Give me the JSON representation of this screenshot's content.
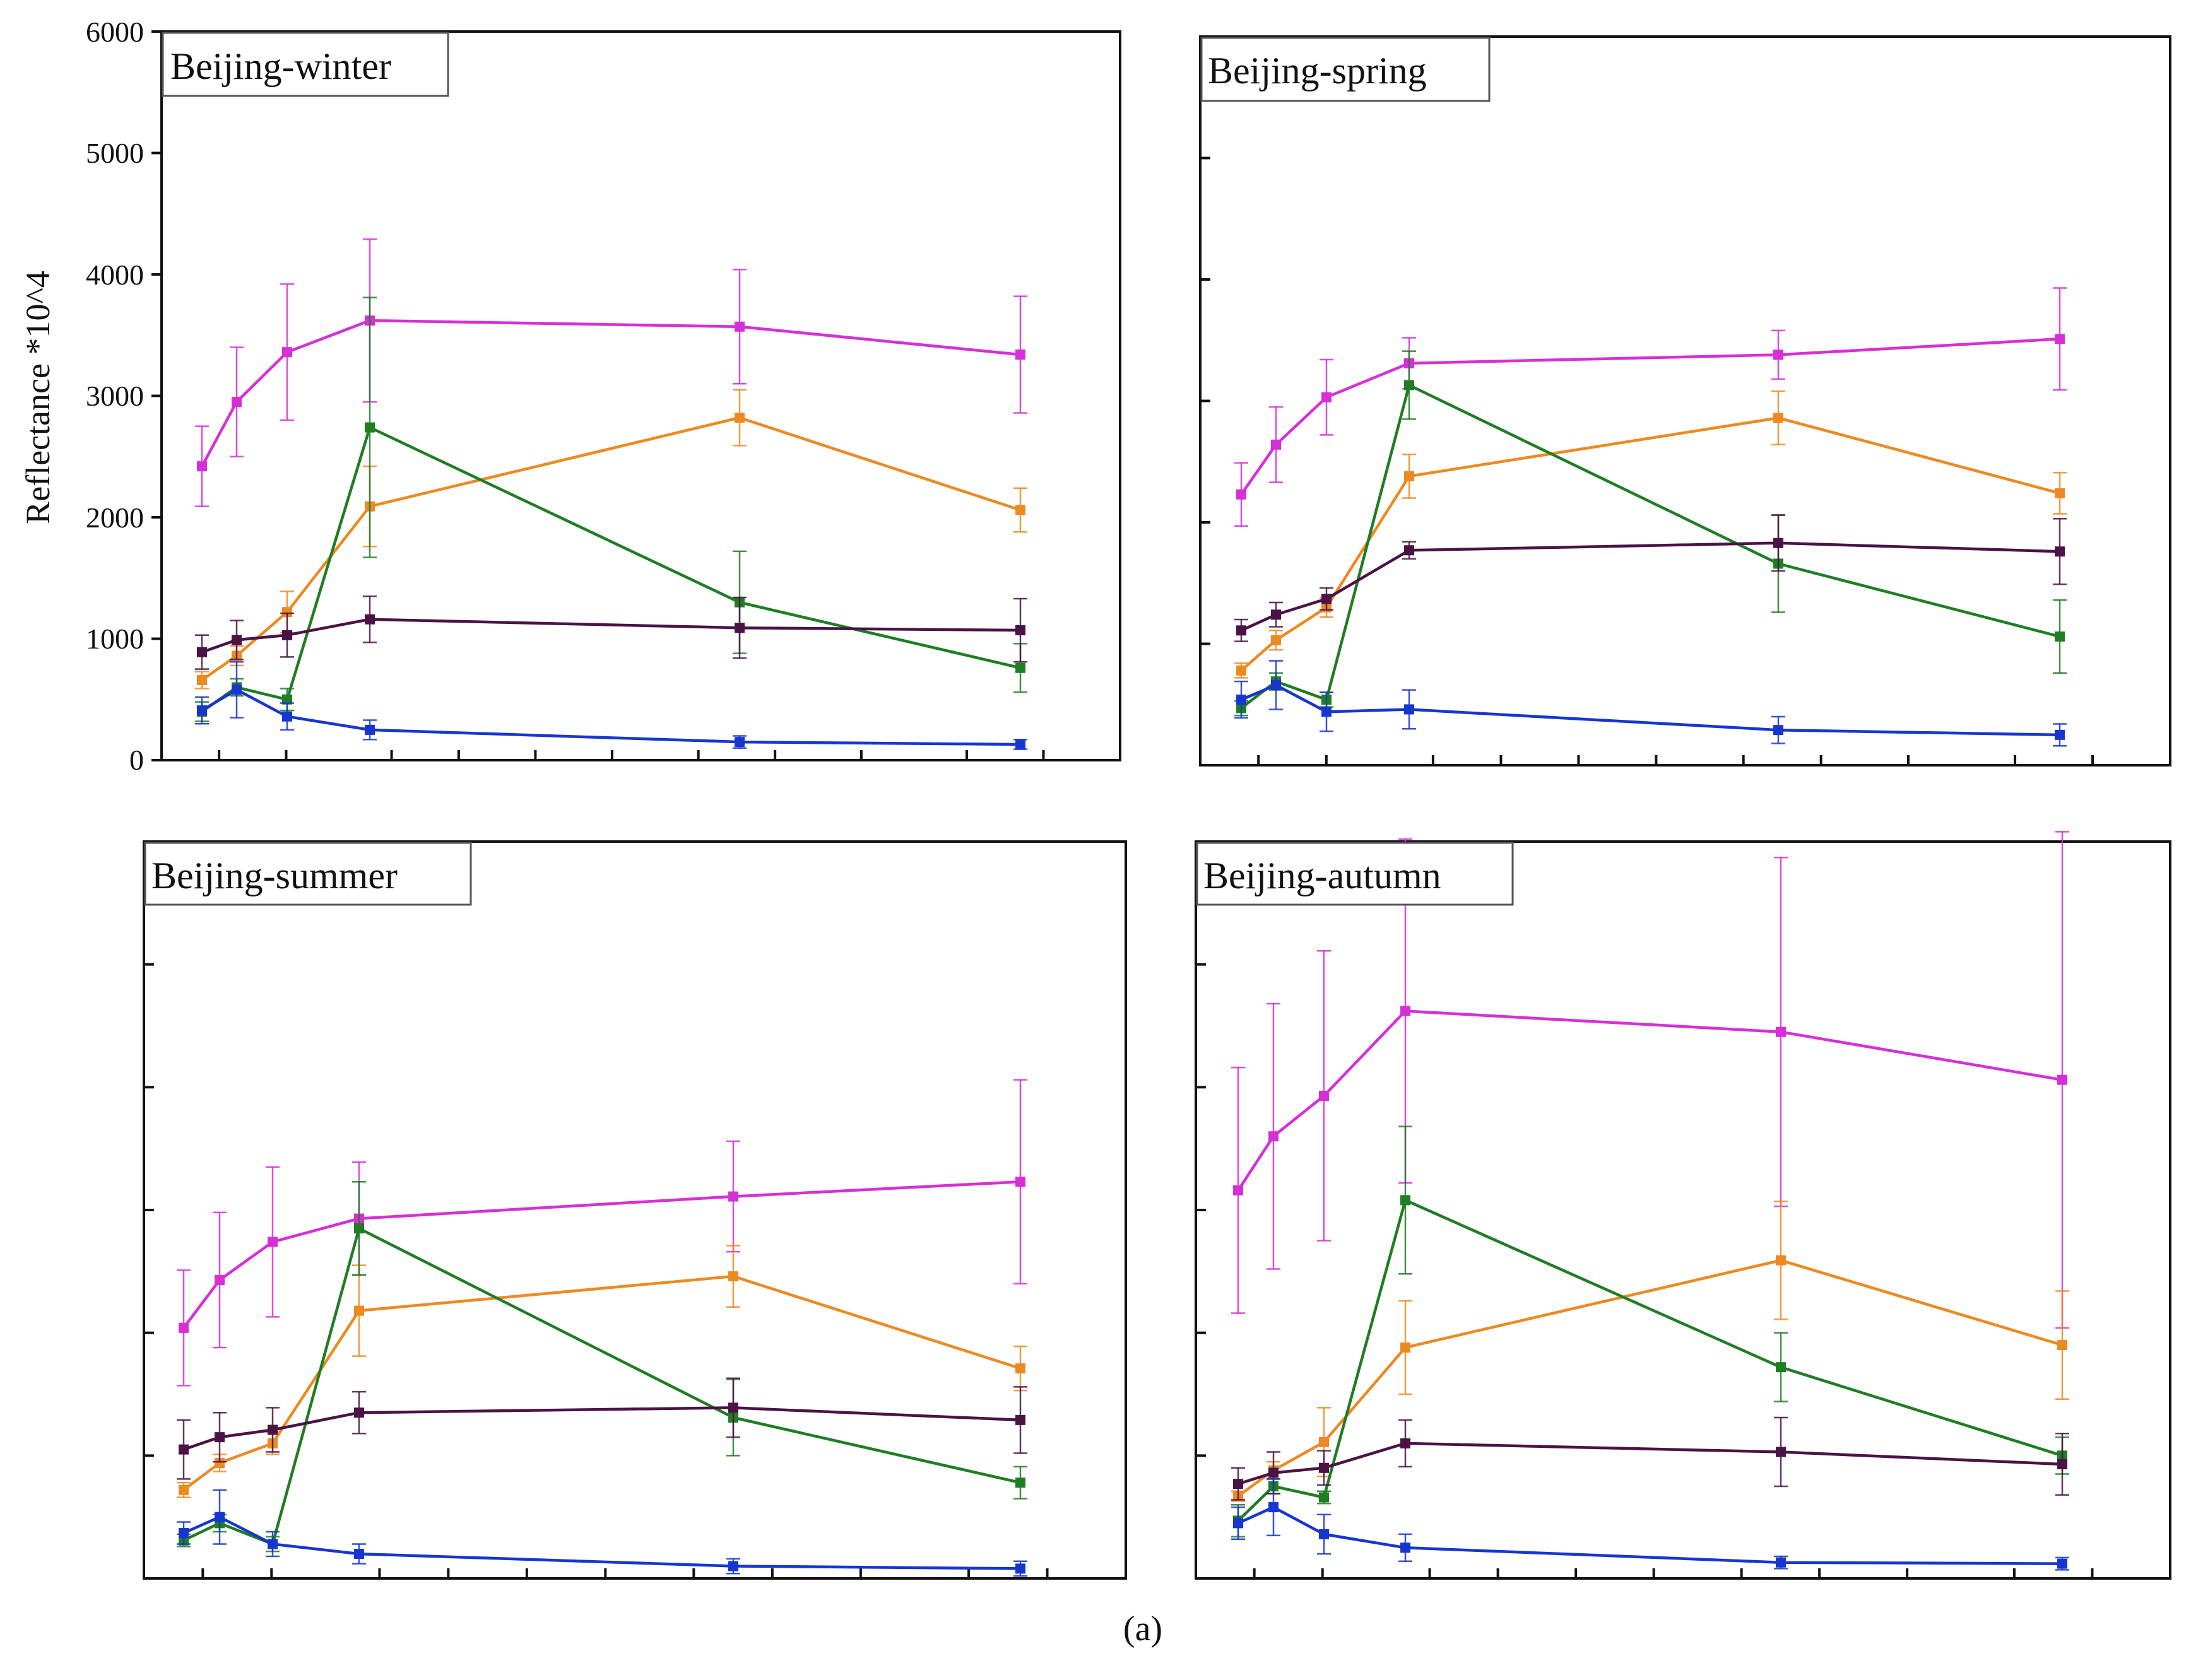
{
  "figure": {
    "caption": "(a)",
    "ylabel": "Reflectance *10^4"
  },
  "colors": {
    "magenta": "#d62fd6",
    "orange": "#ec8a22",
    "green": "#1f7d23",
    "purple": "#4a1245",
    "blue": "#1636cf",
    "frame": "#111111"
  },
  "chart_data": [
    {
      "type": "line",
      "title": "Beijing-winter",
      "x": [
        1,
        2,
        3,
        4,
        5,
        6
      ],
      "ylim": [
        0,
        6000
      ],
      "yticks": [
        "0",
        "1000",
        "2000",
        "3000",
        "4000",
        "5000",
        "6000"
      ],
      "series": [
        {
          "name": "magenta",
          "color": "#d62fd6",
          "values": [
            2420,
            2950,
            3360,
            3620,
            3570,
            3340
          ],
          "errors": [
            330,
            450,
            560,
            670,
            470,
            480
          ]
        },
        {
          "name": "orange",
          "color": "#ec8a22",
          "values": [
            660,
            860,
            1220,
            2090,
            2820,
            2060
          ],
          "errors": [
            70,
            80,
            170,
            330,
            230,
            180
          ]
        },
        {
          "name": "green",
          "color": "#1f7d23",
          "values": [
            400,
            600,
            500,
            2740,
            1300,
            760
          ],
          "errors": [
            80,
            70,
            90,
            1070,
            420,
            200
          ]
        },
        {
          "name": "purple",
          "color": "#4a1245",
          "values": [
            890,
            990,
            1030,
            1160,
            1090,
            1070
          ],
          "errors": [
            140,
            160,
            180,
            190,
            250,
            260
          ]
        },
        {
          "name": "blue",
          "color": "#1636cf",
          "values": [
            410,
            580,
            360,
            250,
            150,
            130
          ],
          "errors": [
            110,
            230,
            110,
            80,
            50,
            40
          ]
        }
      ]
    },
    {
      "type": "line",
      "title": "Beijing-spring",
      "x": [
        1,
        2,
        3,
        4,
        5,
        6
      ],
      "ylim": [
        0,
        6000
      ],
      "series": [
        {
          "name": "magenta",
          "color": "#d62fd6",
          "values": [
            2230,
            2640,
            3030,
            3310,
            3380,
            3510
          ],
          "errors": [
            260,
            310,
            310,
            210,
            200,
            420
          ]
        },
        {
          "name": "orange",
          "color": "#ec8a22",
          "values": [
            780,
            1030,
            1300,
            2380,
            2860,
            2240
          ],
          "errors": [
            60,
            80,
            80,
            180,
            220,
            170
          ]
        },
        {
          "name": "green",
          "color": "#1f7d23",
          "values": [
            470,
            690,
            540,
            3130,
            1660,
            1060
          ],
          "errors": [
            60,
            70,
            60,
            280,
            400,
            300
          ]
        },
        {
          "name": "purple",
          "color": "#4a1245",
          "values": [
            1110,
            1240,
            1370,
            1770,
            1830,
            1760
          ],
          "errors": [
            90,
            100,
            90,
            70,
            230,
            270
          ]
        },
        {
          "name": "blue",
          "color": "#1636cf",
          "values": [
            540,
            660,
            440,
            460,
            290,
            250
          ],
          "errors": [
            150,
            200,
            160,
            160,
            110,
            90
          ]
        }
      ]
    },
    {
      "type": "line",
      "title": "Beijing-summer",
      "x": [
        1,
        2,
        3,
        4,
        5,
        6
      ],
      "ylim": [
        0,
        6000
      ],
      "series": [
        {
          "name": "magenta",
          "color": "#d62fd6",
          "values": [
            2040,
            2430,
            2740,
            2930,
            3110,
            3230
          ],
          "errors": [
            470,
            550,
            610,
            460,
            450,
            830
          ]
        },
        {
          "name": "orange",
          "color": "#ec8a22",
          "values": [
            720,
            940,
            1100,
            2180,
            2460,
            1710
          ],
          "errors": [
            60,
            70,
            90,
            370,
            250,
            180
          ]
        },
        {
          "name": "green",
          "color": "#1f7d23",
          "values": [
            310,
            450,
            280,
            2850,
            1310,
            780
          ],
          "errors": [
            50,
            70,
            60,
            380,
            310,
            130
          ]
        },
        {
          "name": "purple",
          "color": "#4a1245",
          "values": [
            1050,
            1150,
            1210,
            1350,
            1390,
            1290
          ],
          "errors": [
            240,
            200,
            180,
            170,
            240,
            270
          ]
        },
        {
          "name": "blue",
          "color": "#1636cf",
          "values": [
            370,
            500,
            280,
            200,
            100,
            80
          ],
          "errors": [
            90,
            220,
            100,
            80,
            60,
            60
          ]
        }
      ]
    },
    {
      "type": "line",
      "title": "Beijing-autumn",
      "x": [
        1,
        2,
        3,
        4,
        5,
        6
      ],
      "ylim": [
        0,
        6000
      ],
      "series": [
        {
          "name": "magenta",
          "color": "#d62fd6",
          "values": [
            3160,
            3600,
            3930,
            4620,
            4450,
            4060
          ],
          "errors": [
            1000,
            1080,
            1180,
            1400,
            1420,
            2020
          ]
        },
        {
          "name": "orange",
          "color": "#ec8a22",
          "values": [
            670,
            880,
            1110,
            1880,
            2590,
            1900
          ],
          "errors": [
            40,
            70,
            280,
            380,
            480,
            440
          ]
        },
        {
          "name": "green",
          "color": "#1f7d23",
          "values": [
            470,
            750,
            660,
            3080,
            1720,
            1000
          ],
          "errors": [
            130,
            60,
            50,
            600,
            280,
            150
          ]
        },
        {
          "name": "purple",
          "color": "#4a1245",
          "values": [
            770,
            860,
            900,
            1100,
            1030,
            930
          ],
          "errors": [
            130,
            170,
            140,
            190,
            280,
            250
          ]
        },
        {
          "name": "blue",
          "color": "#1636cf",
          "values": [
            450,
            580,
            360,
            250,
            130,
            120
          ],
          "errors": [
            130,
            230,
            160,
            110,
            50,
            50
          ]
        }
      ]
    }
  ]
}
